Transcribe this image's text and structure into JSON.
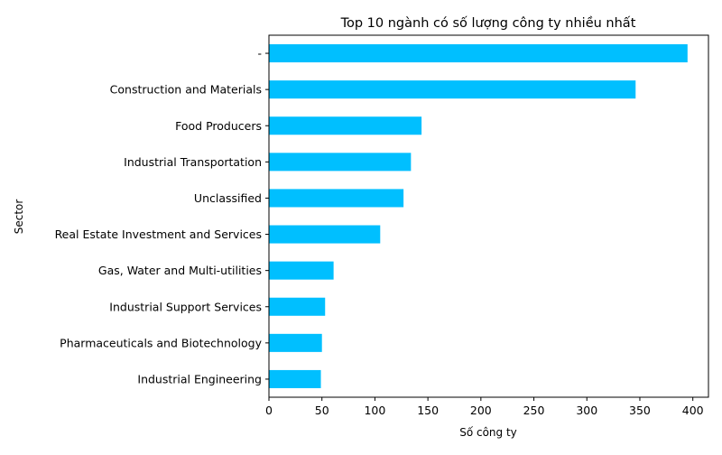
{
  "chart_data": {
    "type": "bar",
    "orientation": "horizontal",
    "title": "Top 10 ngành có số lượng công ty nhiều nhất",
    "xlabel": "Số công ty",
    "ylabel": "Sector",
    "categories": [
      "-",
      "Construction and Materials",
      "Food Producers",
      "Industrial Transportation",
      "Unclassified",
      "Real Estate Investment and Services",
      "Gas, Water and Multi-utilities",
      "Industrial Support Services",
      "Pharmaceuticals and Biotechnology",
      "Industrial Engineering"
    ],
    "values": [
      395,
      346,
      144,
      134,
      127,
      105,
      61,
      53,
      50,
      49
    ],
    "xlim": [
      0,
      414.75
    ],
    "xticks": [
      0,
      50,
      100,
      150,
      200,
      250,
      300,
      350,
      400
    ],
    "bar_color": "#00bfff",
    "grid": false,
    "legend": "none"
  }
}
